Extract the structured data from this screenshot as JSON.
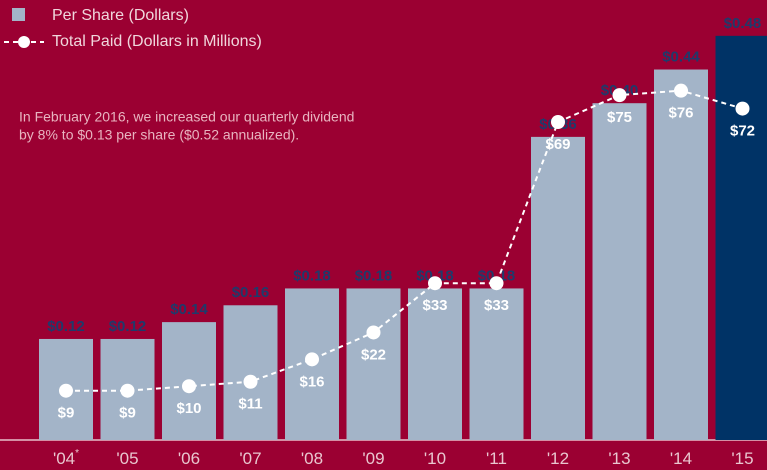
{
  "chart_data": {
    "type": "bar_line",
    "annotation": [
      "In February 2016, we increased our quarterly dividend",
      "by 8% to $0.13 per share ($0.52 annualized)."
    ],
    "categories": [
      "'04",
      "'05",
      "'06",
      "'07",
      "'08",
      "'09",
      "'10",
      "'11",
      "'12",
      "'13",
      "'14",
      "'15"
    ],
    "footnote_marker": "*",
    "ylim": [
      0,
      0.5
    ],
    "y2lim": [
      0,
      92
    ],
    "series": [
      {
        "name": "Per Share (Dollars)",
        "type": "bar",
        "color": "#a3b4c8",
        "colors": [
          "#a3b4c8",
          "#a3b4c8",
          "#a3b4c8",
          "#a3b4c8",
          "#a3b4c8",
          "#a3b4c8",
          "#a3b4c8",
          "#a3b4c8",
          "#a3b4c8",
          "#a3b4c8",
          "#a3b4c8",
          "#003366"
        ],
        "values": [
          0.12,
          0.12,
          0.14,
          0.16,
          0.18,
          0.18,
          0.18,
          0.18,
          0.36,
          0.4,
          0.44,
          0.48
        ],
        "value_labels": [
          "$0.12",
          "$0.12",
          "$0.14",
          "$0.16",
          "$0.18",
          "$0.18",
          "$0.18",
          "$0.18",
          "$0.36",
          "$0.40",
          "$0.44",
          "$0.48"
        ]
      },
      {
        "name": "Total Paid (Dollars in Millions)",
        "type": "line",
        "axis": "y2",
        "color": "#ffffff",
        "values": [
          9,
          9,
          10,
          11,
          16,
          22,
          33,
          33,
          69,
          75,
          76,
          72
        ],
        "value_labels": [
          "$9",
          "$9",
          "$10",
          "$11",
          "$16",
          "$22",
          "$33",
          "$33",
          "$69",
          "$75",
          "$76",
          "$72"
        ]
      }
    ]
  }
}
